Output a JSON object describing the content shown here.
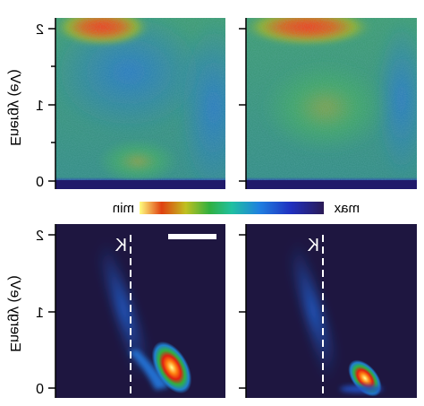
{
  "chart_data": [
    {
      "type": "heatmap",
      "panel": "top-left",
      "ylabel": "Energy (eV)",
      "yticks": [
        "0",
        "1",
        "2"
      ],
      "ylim": [
        0,
        2
      ],
      "description": "measured intensity map"
    },
    {
      "type": "heatmap",
      "panel": "top-right",
      "yticks": [],
      "ylim": [
        0,
        2
      ],
      "description": "measured intensity map"
    },
    {
      "type": "heatmap",
      "panel": "bottom-left",
      "ylabel": "Energy (eV)",
      "yticks": [
        "0",
        "1",
        "2"
      ],
      "ylim": [
        0,
        2
      ],
      "marker_label": "K",
      "scale_bar": true
    },
    {
      "type": "heatmap",
      "panel": "bottom-right",
      "yticks": [],
      "ylim": [
        0,
        2
      ],
      "marker_label": "K"
    }
  ],
  "colorbar": {
    "min_label": "min",
    "max_label": "max",
    "colors": [
      "#2a1a55",
      "#2030c0",
      "#2080e0",
      "#20c0a0",
      "#30b040",
      "#c0c020",
      "#e04010",
      "#ffff80"
    ]
  },
  "labels": {
    "energy_top": "Energy (eV)",
    "energy_bottom": "Energy (eV)",
    "tick_0": "0",
    "tick_1": "1",
    "tick_2": "2",
    "k_left": "K",
    "k_right": "K"
  },
  "colors": {
    "background_dark": "#1e1640",
    "dashed_line": "#ffffff",
    "scale_bar": "#ffffff"
  }
}
